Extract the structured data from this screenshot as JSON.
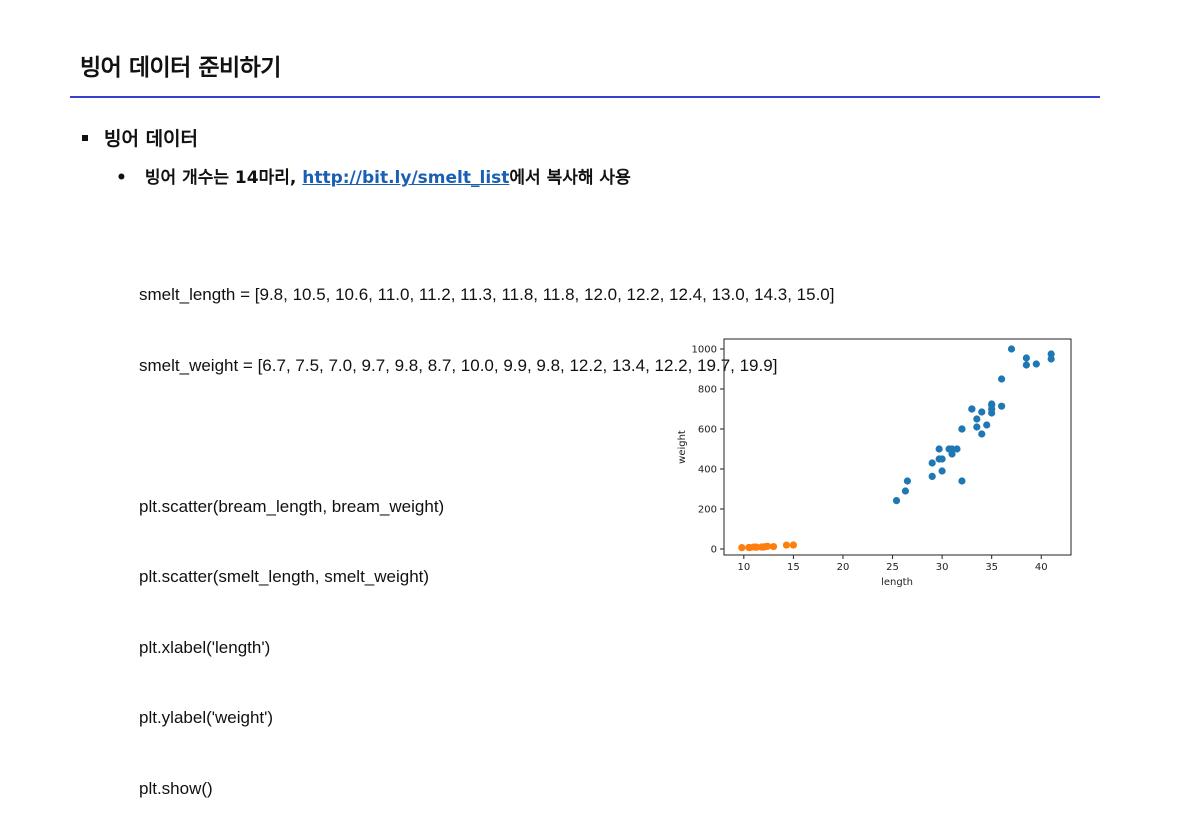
{
  "slide": {
    "title": "빙어 데이터 준비하기",
    "bullet1": "빙어 데이터",
    "bullet2_prefix": "빙어 개수는 14마리, ",
    "bullet2_link": "http://bit.ly/smelt_list",
    "bullet2_suffix": "에서 복사해 사용"
  },
  "code": {
    "line1": "smelt_length = [9.8, 10.5, 10.6, 11.0, 11.2, 11.3, 11.8, 11.8, 12.0, 12.2, 12.4, 13.0, 14.3, 15.0]",
    "line2": "smelt_weight = [6.7, 7.5, 7.0, 9.7, 9.8, 8.7, 10.0, 9.9, 9.8, 12.2, 13.4, 12.2, 19.7, 19.9]",
    "line3": "plt.scatter(bream_length, bream_weight)",
    "line4": "plt.scatter(smelt_length, smelt_weight)",
    "line5": "plt.xlabel('length')",
    "line6": "plt.ylabel('weight')",
    "line7": "plt.show()"
  },
  "colors": {
    "rule": "#3a3fcf",
    "link": "#1a5fb4",
    "bream": "#1f77b4",
    "smelt": "#ff7f0e"
  },
  "chart_data": {
    "type": "scatter",
    "xlabel": "length",
    "ylabel": "weight",
    "xlim": [
      8,
      43
    ],
    "ylim": [
      -30,
      1050
    ],
    "xticks": [
      10,
      15,
      20,
      25,
      30,
      35,
      40
    ],
    "yticks": [
      0,
      200,
      400,
      600,
      800,
      1000
    ],
    "grid": false,
    "series": [
      {
        "color": "#1f77b4",
        "x": [
          25.4,
          26.3,
          26.5,
          29.0,
          29.0,
          29.7,
          29.7,
          30.0,
          30.0,
          30.7,
          31.0,
          31.0,
          31.5,
          32.0,
          32.0,
          32.0,
          33.0,
          33.0,
          33.5,
          33.5,
          34.0,
          34.0,
          34.5,
          35.0,
          35.0,
          35.0,
          35.0,
          36.0,
          36.0,
          37.0,
          38.5,
          38.5,
          39.5,
          41.0,
          41.0
        ],
        "y": [
          242,
          290,
          340,
          363,
          430,
          450,
          500,
          390,
          450,
          500,
          475,
          500,
          500,
          340,
          600,
          600,
          700,
          700,
          610,
          650,
          575,
          685,
          620,
          680,
          700,
          725,
          720,
          714,
          850,
          1000,
          920,
          955,
          925,
          975,
          950
        ]
      },
      {
        "color": "#ff7f0e",
        "x": [
          9.8,
          10.5,
          10.6,
          11.0,
          11.2,
          11.3,
          11.8,
          11.8,
          12.0,
          12.2,
          12.4,
          13.0,
          14.3,
          15.0
        ],
        "y": [
          6.7,
          7.5,
          7.0,
          9.7,
          9.8,
          8.7,
          10.0,
          9.9,
          9.8,
          12.2,
          13.4,
          12.2,
          19.7,
          19.9
        ]
      }
    ]
  }
}
